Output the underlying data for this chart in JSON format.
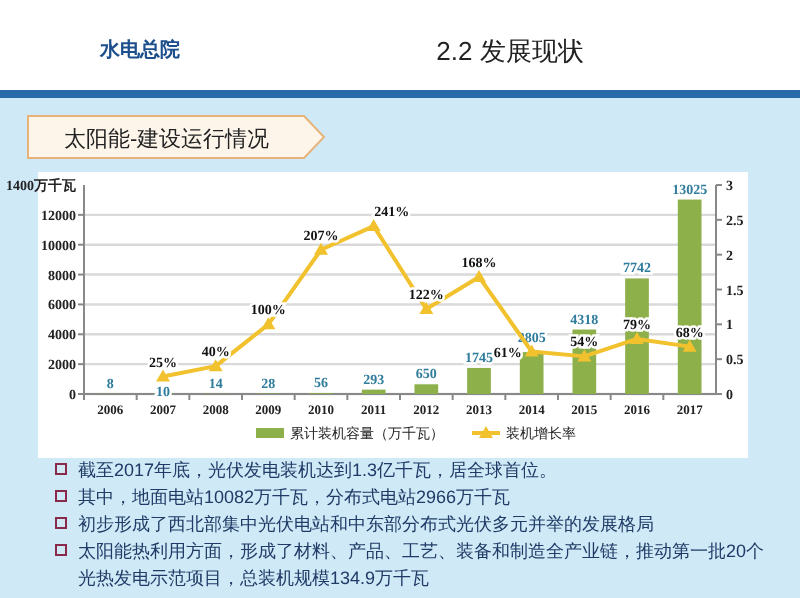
{
  "chart_data": {
    "type": "bar",
    "title": "2.2 发展现状",
    "subtitle": "太阳能-建设运行情况",
    "categories": [
      "2006",
      "2007",
      "2008",
      "2009",
      "2010",
      "2011",
      "2012",
      "2013",
      "2014",
      "2015",
      "2016",
      "2017"
    ],
    "series": [
      {
        "name": "累计装机容量（万千瓦）",
        "color": "#8db04a",
        "values": [
          8,
          10,
          14,
          28,
          56,
          293,
          650,
          1745,
          2805,
          4318,
          7742,
          13025
        ],
        "value_labels": [
          "8",
          "10",
          "14",
          "28",
          "56",
          "293",
          "650",
          "1745",
          "2805",
          "4318",
          "7742",
          "13025"
        ]
      },
      {
        "name": "装机增长率",
        "type": "line",
        "axis": "y2",
        "color": "#f2c12e",
        "marker": "triangle",
        "values": [
          null,
          0.25,
          0.4,
          1.0,
          2.07,
          2.41,
          1.22,
          1.68,
          0.61,
          0.54,
          0.79,
          0.68
        ],
        "value_labels": [
          null,
          "25%",
          "40%",
          "100%",
          "207%",
          "241%",
          "122%",
          "168%",
          "61%",
          "54%",
          "79%",
          "68%"
        ]
      }
    ],
    "ylabel": "1400万千瓦",
    "ylim": [
      0,
      14000
    ],
    "yticks": [
      0,
      2000,
      4000,
      6000,
      8000,
      10000,
      12000
    ],
    "y2lim": [
      0,
      3
    ],
    "y2ticks": [
      0,
      0.5,
      1,
      1.5,
      2,
      2.5,
      3
    ],
    "grid": "y",
    "legend": "bottom",
    "annotations": [
      "水电总院",
      "截至2017年底，光伏发电装机达到1.3亿千瓦，居全球首位。",
      "其中，地面电站10082万千瓦，分布式电站2966万千瓦",
      "初步形成了西北部集中光伏电站和中东部分布式光伏多元并举的发展格局",
      "太阳能热利用方面，形成了材料、产品、工艺、装备和制造全产业链，推动第一批20个光热发电示范项目，总装机规模134.9万千瓦"
    ]
  }
}
